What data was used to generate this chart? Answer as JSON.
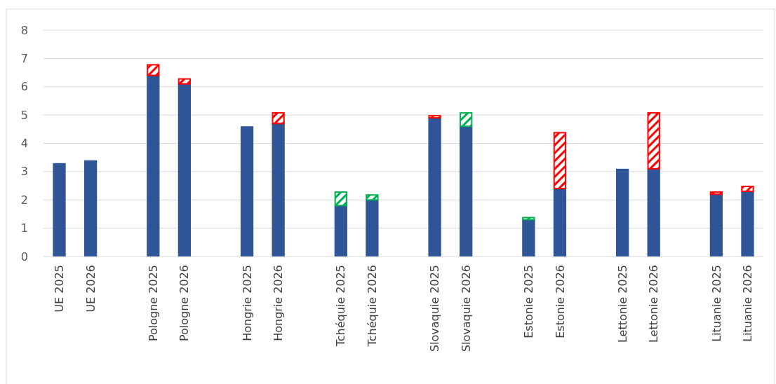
{
  "chart_data": {
    "type": "bar",
    "stacked": true,
    "categories": [
      "UE 2025",
      "UE 2026",
      null,
      "Pologne 2025",
      "Pologne 2026",
      null,
      "Hongrie 2025",
      "Hongrie 2026",
      null,
      "Tchéquie 2025",
      "Tchéquie 2026",
      null,
      "Slovaquie 2025",
      "Slovaquie 2026",
      null,
      "Estonie 2025",
      "Estonie 2026",
      null,
      "Lettonie 2025",
      "Lettonie 2026",
      null,
      "Lituanie 2025",
      "Lituanie 2026"
    ],
    "series": [
      {
        "color": "#2f5597",
        "values": [
          3.3,
          3.4,
          null,
          6.4,
          6.1,
          null,
          4.6,
          4.7,
          null,
          1.8,
          2.0,
          null,
          4.9,
          4.6,
          null,
          1.3,
          2.4,
          null,
          3.1,
          3.1,
          null,
          2.2,
          2.3
        ]
      },
      {
        "type": "bar",
        "color": "#ff0000",
        "values": [
          null,
          null,
          null,
          0.4,
          0.2,
          null,
          null,
          0.4,
          null,
          null,
          null,
          null,
          0.1,
          null,
          null,
          null,
          2.0,
          null,
          null,
          2.0,
          null,
          0.1,
          0.2
        ]
      },
      {
        "type": "bar",
        "color": "#00b050",
        "values": [
          null,
          null,
          null,
          null,
          null,
          null,
          null,
          null,
          null,
          0.5,
          0.2,
          null,
          null,
          0.5,
          null,
          0.1,
          null,
          null,
          null,
          null,
          null,
          null,
          null
        ]
      }
    ],
    "ylim": [
      0,
      8
    ],
    "yticks": [
      0,
      1,
      2,
      3,
      4,
      5,
      6,
      7,
      8
    ],
    "grid": "y"
  }
}
